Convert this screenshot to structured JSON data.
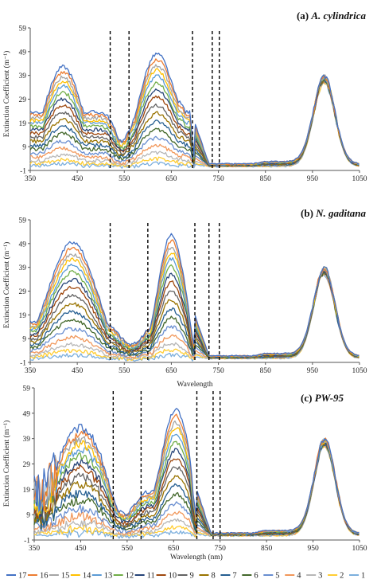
{
  "chart_data": [
    {
      "type": "line",
      "title_prefix": "(a)",
      "title_species": "A. cylindrica",
      "ylabel": "Extinction Coefficient (m⁻¹)",
      "xlabel": "",
      "xlim": [
        350,
        1050
      ],
      "ylim": [
        -1,
        59
      ],
      "xticks": [
        350,
        450,
        550,
        650,
        750,
        850,
        950,
        1050
      ],
      "yticks": [
        -1,
        9,
        19,
        29,
        39,
        49,
        59
      ],
      "dashed_lines_x": [
        520,
        560,
        695,
        737,
        752
      ],
      "grid": false,
      "series_names": [
        "17",
        "16",
        "15",
        "14",
        "13",
        "12",
        "11",
        "10",
        "9",
        "8",
        "7",
        "6",
        "5",
        "4",
        "3",
        "2",
        "1"
      ]
    },
    {
      "type": "line",
      "title_prefix": "(b)",
      "title_species": "N. gaditana",
      "ylabel": "Extinction Coefficient (m⁻¹)",
      "xlabel": "Wavelength",
      "xlim": [
        350,
        1050
      ],
      "ylim": [
        -1,
        59
      ],
      "xticks": [
        350,
        450,
        550,
        650,
        750,
        850,
        950,
        1050
      ],
      "yticks": [
        -1,
        9,
        19,
        29,
        39,
        49,
        59
      ],
      "dashed_lines_x": [
        520,
        600,
        700,
        730,
        752
      ],
      "grid": false,
      "series_names": [
        "17",
        "16",
        "15",
        "14",
        "13",
        "12",
        "11",
        "10",
        "9",
        "8",
        "7",
        "6",
        "5",
        "4",
        "3",
        "2",
        "1"
      ]
    },
    {
      "type": "line",
      "title_prefix": "(c)",
      "title_species": "PW-95",
      "ylabel": "Extinction Coefficient (m⁻¹)",
      "xlabel": "Wavelength (nm)",
      "xlim": [
        350,
        1050
      ],
      "ylim": [
        -1,
        59
      ],
      "xticks": [
        350,
        450,
        550,
        650,
        750,
        850,
        950,
        1050
      ],
      "yticks": [
        -1,
        9,
        19,
        29,
        39,
        49,
        59
      ],
      "dashed_lines_x": [
        520,
        580,
        700,
        735,
        750
      ],
      "grid": false,
      "series_names": [
        "17",
        "16",
        "15",
        "14",
        "13",
        "12",
        "11",
        "10",
        "9",
        "8",
        "7",
        "6",
        "5",
        "4",
        "3",
        "2",
        "1"
      ]
    }
  ],
  "series": [
    {
      "name": "17",
      "color": "#4472C4",
      "level": 0.98
    },
    {
      "name": "16",
      "color": "#ED7D31",
      "level": 0.93
    },
    {
      "name": "15",
      "color": "#A5A5A5",
      "level": 0.88
    },
    {
      "name": "14",
      "color": "#FFC000",
      "level": 0.84
    },
    {
      "name": "13",
      "color": "#5B9BD5",
      "level": 0.79
    },
    {
      "name": "12",
      "color": "#70AD47",
      "level": 0.73
    },
    {
      "name": "11",
      "color": "#264478",
      "level": 0.67
    },
    {
      "name": "10",
      "color": "#9E480E",
      "level": 0.61
    },
    {
      "name": "9",
      "color": "#636363",
      "level": 0.54
    },
    {
      "name": "8",
      "color": "#997300",
      "level": 0.47
    },
    {
      "name": "7",
      "color": "#255E91",
      "level": 0.4
    },
    {
      "name": "6",
      "color": "#43682B",
      "level": 0.33
    },
    {
      "name": "5",
      "color": "#698ED0",
      "level": 0.26
    },
    {
      "name": "4",
      "color": "#F1975A",
      "level": 0.19
    },
    {
      "name": "3",
      "color": "#B7B7B7",
      "level": 0.13
    },
    {
      "name": "2",
      "color": "#FFCD33",
      "level": 0.08
    },
    {
      "name": "1",
      "color": "#7CAFDD",
      "level": 0.04
    }
  ],
  "legend": {
    "position": "bottom"
  }
}
